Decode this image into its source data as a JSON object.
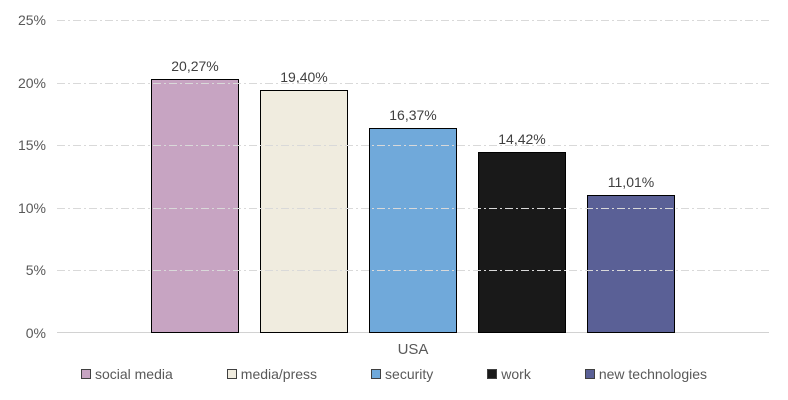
{
  "chart_data": {
    "type": "bar",
    "title": "",
    "categories": [
      "USA"
    ],
    "series": [
      {
        "name": "social media",
        "value": 20.27,
        "label": "20,27%",
        "color": "#c7a4c2"
      },
      {
        "name": "media/press",
        "value": 19.4,
        "label": "19,40%",
        "color": "#f0ecdf"
      },
      {
        "name": "security",
        "value": 16.37,
        "label": "16,37%",
        "color": "#70a9da"
      },
      {
        "name": "work",
        "value": 14.42,
        "label": "14,42%",
        "color": "#191919"
      },
      {
        "name": "new technologies",
        "value": 11.01,
        "label": "11,01%",
        "color": "#5a6096"
      }
    ],
    "xlabel": "USA",
    "ylabel": "",
    "ylim": [
      0,
      25
    ],
    "ytick_step": 5,
    "yticks": [
      "0%",
      "5%",
      "10%",
      "15%",
      "20%",
      "25%"
    ],
    "grid": "horizontal-dash-dot",
    "gridline_color": "#d9d9d9",
    "axis_line_color": "#d2d2d2",
    "bar_border_color": "#000000",
    "tick_label_color": "#595959",
    "data_label_color": "#404040",
    "legend_position": "bottom",
    "decimal_separator": ","
  }
}
